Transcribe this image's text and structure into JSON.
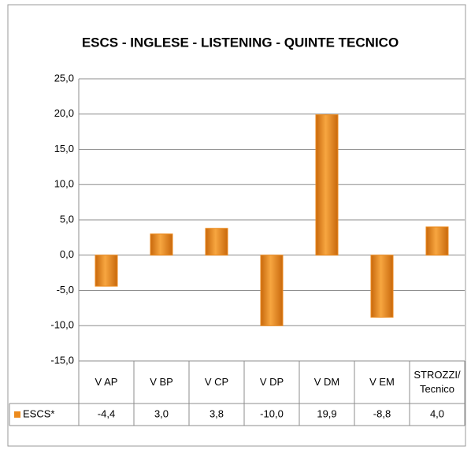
{
  "chart_data": {
    "type": "bar",
    "title": "ESCS - INGLESE - LISTENING -  QUINTE TECNICO",
    "categories": [
      "V AP",
      "V BP",
      "V CP",
      "V DP",
      "V DM",
      "V EM",
      "STROZZI/ Tecnico"
    ],
    "series": [
      {
        "name": "ESCS*",
        "color": "#ec8a1c",
        "values": [
          -4.4,
          3.0,
          3.8,
          -10.0,
          19.9,
          -8.8,
          4.0
        ],
        "value_labels": [
          "-4,4",
          "3,0",
          "3,8",
          "-10,0",
          "19,9",
          "-8,8",
          "4,0"
        ]
      }
    ],
    "ylim": [
      -15,
      25
    ],
    "yticks": [
      {
        "value": -15,
        "label": "-15,0"
      },
      {
        "value": -10,
        "label": "-10,0"
      },
      {
        "value": -5,
        "label": "-5,0"
      },
      {
        "value": 0,
        "label": "0,0"
      },
      {
        "value": 5,
        "label": "5,0"
      },
      {
        "value": 10,
        "label": "10,0"
      },
      {
        "value": 15,
        "label": "15,0"
      },
      {
        "value": 20,
        "label": "20,0"
      },
      {
        "value": 25,
        "label": "25,0"
      }
    ],
    "grid": true
  }
}
